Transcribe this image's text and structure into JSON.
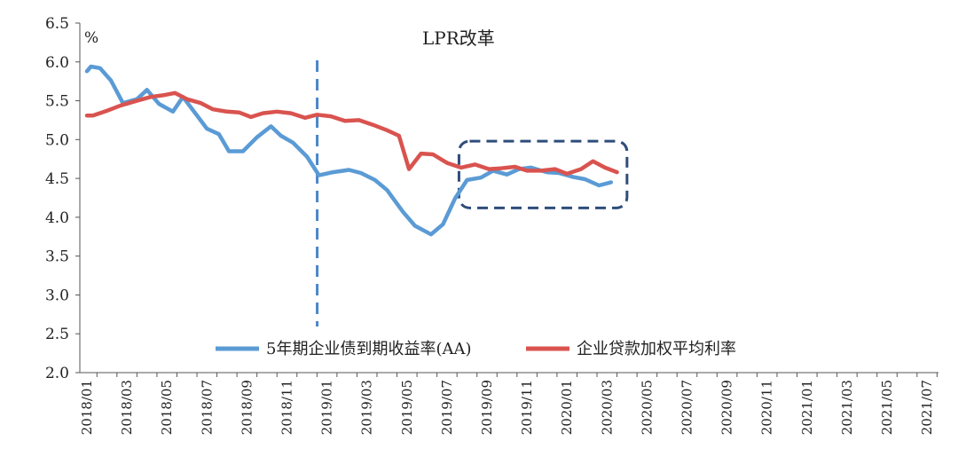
{
  "chart_data": {
    "type": "line",
    "title": "",
    "unit": "%",
    "ylim": [
      2.0,
      6.5
    ],
    "yticks": [
      "6.5",
      "6.0",
      "5.5",
      "5.0",
      "4.5",
      "4.0",
      "3.5",
      "3.0",
      "2.5",
      "2.0"
    ],
    "ytick_values": [
      6.5,
      6.0,
      5.5,
      5.0,
      4.5,
      4.0,
      3.5,
      3.0,
      2.5,
      2.0
    ],
    "xtick_labels": [
      "2018/01",
      "2018/03",
      "2018/05",
      "2018/07",
      "2018/09",
      "2018/11",
      "2019/01",
      "2019/03",
      "2019/05",
      "2019/07",
      "2019/09",
      "2019/11",
      "2020/01",
      "2020/03",
      "2020/05",
      "2020/07",
      "2020/09",
      "2020/11",
      "2021/01",
      "2021/03",
      "2021/05",
      "2021/07"
    ],
    "grid": false,
    "legend_position": "bottom-center",
    "series": [
      {
        "name": "5年期企业债到期收益率(AA)",
        "color": "#5b9bd5",
        "points": [
          [
            0.0,
            5.88
          ],
          [
            0.2,
            5.94
          ],
          [
            0.65,
            5.92
          ],
          [
            1.2,
            5.76
          ],
          [
            1.8,
            5.47
          ],
          [
            2.5,
            5.52
          ],
          [
            3.0,
            5.64
          ],
          [
            3.6,
            5.46
          ],
          [
            4.3,
            5.36
          ],
          [
            4.8,
            5.55
          ],
          [
            5.3,
            5.38
          ],
          [
            6.0,
            5.14
          ],
          [
            6.6,
            5.07
          ],
          [
            7.1,
            4.85
          ],
          [
            7.8,
            4.85
          ],
          [
            8.5,
            5.03
          ],
          [
            9.2,
            5.17
          ],
          [
            9.7,
            5.05
          ],
          [
            10.3,
            4.96
          ],
          [
            11.0,
            4.78
          ],
          [
            11.6,
            4.54
          ],
          [
            12.3,
            4.58
          ],
          [
            13.1,
            4.61
          ],
          [
            13.7,
            4.57
          ],
          [
            14.4,
            4.48
          ],
          [
            15.0,
            4.35
          ],
          [
            15.8,
            4.07
          ],
          [
            16.4,
            3.89
          ],
          [
            17.2,
            3.78
          ],
          [
            17.8,
            3.91
          ],
          [
            18.4,
            4.24
          ],
          [
            19.0,
            4.48
          ],
          [
            19.7,
            4.51
          ],
          [
            20.3,
            4.6
          ],
          [
            21.0,
            4.55
          ],
          [
            21.6,
            4.62
          ],
          [
            22.2,
            4.64
          ],
          [
            23.0,
            4.58
          ],
          [
            23.6,
            4.57
          ],
          [
            24.3,
            4.52
          ],
          [
            24.9,
            4.49
          ],
          [
            25.6,
            4.41
          ],
          [
            26.2,
            4.45
          ]
        ]
      },
      {
        "name": "企业贷款加权平均利率",
        "color": "#d9534f",
        "points": [
          [
            0.0,
            5.31
          ],
          [
            0.3,
            5.31
          ],
          [
            1.0,
            5.37
          ],
          [
            1.7,
            5.44
          ],
          [
            2.5,
            5.5
          ],
          [
            3.2,
            5.55
          ],
          [
            3.8,
            5.57
          ],
          [
            4.4,
            5.6
          ],
          [
            5.0,
            5.52
          ],
          [
            5.7,
            5.47
          ],
          [
            6.3,
            5.39
          ],
          [
            7.0,
            5.36
          ],
          [
            7.6,
            5.35
          ],
          [
            8.2,
            5.29
          ],
          [
            8.8,
            5.34
          ],
          [
            9.5,
            5.36
          ],
          [
            10.2,
            5.34
          ],
          [
            10.9,
            5.28
          ],
          [
            11.5,
            5.32
          ],
          [
            12.2,
            5.3
          ],
          [
            12.9,
            5.24
          ],
          [
            13.6,
            5.25
          ],
          [
            14.3,
            5.19
          ],
          [
            15.0,
            5.12
          ],
          [
            15.6,
            5.05
          ],
          [
            16.1,
            4.62
          ],
          [
            16.7,
            4.82
          ],
          [
            17.3,
            4.81
          ],
          [
            18.0,
            4.7
          ],
          [
            18.7,
            4.64
          ],
          [
            19.4,
            4.68
          ],
          [
            20.1,
            4.62
          ],
          [
            20.7,
            4.63
          ],
          [
            21.4,
            4.65
          ],
          [
            22.0,
            4.6
          ],
          [
            22.7,
            4.6
          ],
          [
            23.4,
            4.62
          ],
          [
            24.0,
            4.56
          ],
          [
            24.7,
            4.62
          ],
          [
            25.3,
            4.72
          ],
          [
            25.9,
            4.64
          ],
          [
            26.5,
            4.58
          ]
        ]
      }
    ],
    "annotations": {
      "lpr_label": "LPR改革",
      "lpr_x": 11.6
    },
    "highlight_box": {
      "x_from": 18.6,
      "x_to": 27.0,
      "y_from": 4.12,
      "y_to": 4.98
    }
  }
}
